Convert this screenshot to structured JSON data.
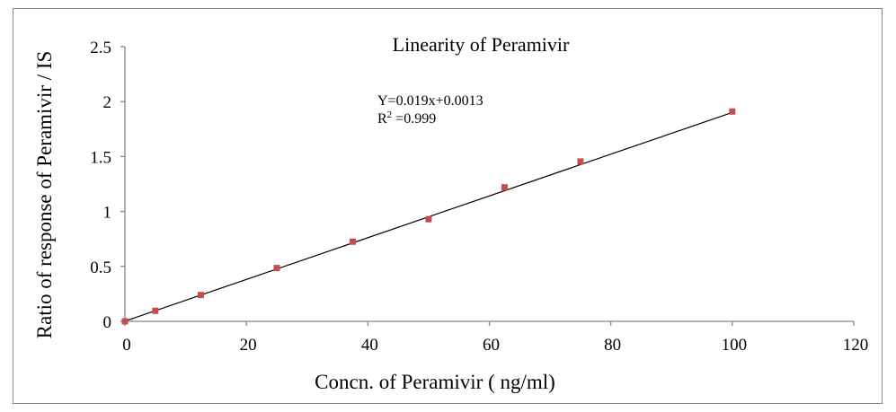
{
  "chart_data": {
    "type": "scatter",
    "title": "Linearity of  Peramivir",
    "xlabel": "Concn. of Peramivir  ( ng/ml)",
    "ylabel": "Ratio of response of Peramivir / IS",
    "xlim": [
      0,
      120
    ],
    "ylim": [
      0,
      2.5
    ],
    "xticks": [
      0,
      20,
      40,
      60,
      80,
      100,
      120
    ],
    "yticks": [
      0,
      0.5,
      1,
      1.5,
      2,
      2.5
    ],
    "xtick_labels": [
      "0",
      "20",
      "40",
      "60",
      "80",
      "100",
      "120"
    ],
    "ytick_labels": [
      "0",
      "0.5",
      "1",
      "1.5",
      "2",
      "2.5"
    ],
    "grid": false,
    "legend": "none",
    "series": [
      {
        "name": "Peramivir",
        "marker": "square",
        "color": "#c0504d",
        "x": [
          0,
          5,
          12.5,
          25,
          37.5,
          50,
          62.5,
          75,
          100
        ],
        "y": [
          0.0,
          0.096,
          0.24,
          0.485,
          0.725,
          0.93,
          1.22,
          1.455,
          1.91
        ]
      }
    ],
    "trendline": {
      "type": "linear",
      "slope": 0.019,
      "intercept": 0.0013,
      "x_range": [
        0,
        100
      ],
      "color": "#000000"
    },
    "annotations": {
      "equation": "Y=0.019x+0.0013",
      "r2_prefix": "R",
      "r2_sup": "2",
      "r2_value": " =0.999"
    },
    "colors": {
      "axis": "#868686",
      "border": "#868686"
    }
  }
}
